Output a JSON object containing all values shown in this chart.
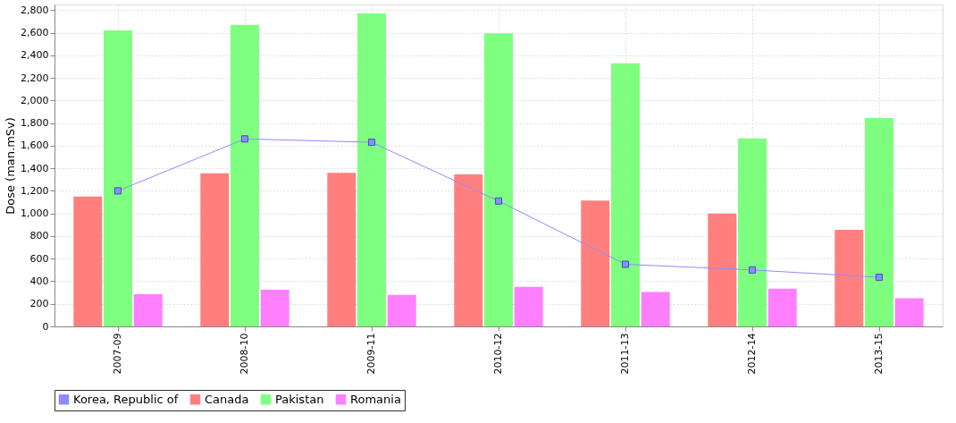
{
  "chart_data": {
    "type": "bar",
    "ylabel": "Dose (man.mSv)",
    "categories": [
      "2007-09",
      "2008-10",
      "2009-11",
      "2010-12",
      "2011-13",
      "2012-14",
      "2013-15"
    ],
    "series": [
      {
        "name": "Korea, Republic of",
        "type": "line",
        "color": "#8c8cff",
        "marker": "square",
        "values": [
          1200,
          1660,
          1630,
          1110,
          550,
          500,
          435
        ]
      },
      {
        "name": "Canada",
        "color": "#ff7f7f",
        "values": [
          1150,
          1355,
          1360,
          1345,
          1115,
          1000,
          855
        ]
      },
      {
        "name": "Pakistan",
        "color": "#7fff7f",
        "values": [
          2620,
          2670,
          2770,
          2595,
          2330,
          1665,
          1845
        ]
      },
      {
        "name": "Romania",
        "color": "#ff7fff",
        "values": [
          285,
          325,
          280,
          350,
          305,
          335,
          250
        ]
      }
    ],
    "ylim": [
      0,
      2850
    ],
    "yticks": [
      {
        "value": 0,
        "label": "0"
      },
      {
        "value": 200,
        "label": "200"
      },
      {
        "value": 400,
        "label": "400"
      },
      {
        "value": 600,
        "label": "600"
      },
      {
        "value": 800,
        "label": "800"
      },
      {
        "value": 1000,
        "label": "1,000"
      },
      {
        "value": 1200,
        "label": "1,200"
      },
      {
        "value": 1400,
        "label": "1,400"
      },
      {
        "value": 1600,
        "label": "1,600"
      },
      {
        "value": 1800,
        "label": "1,800"
      },
      {
        "value": 2000,
        "label": "2,000"
      },
      {
        "value": 2200,
        "label": "2,200"
      },
      {
        "value": 2400,
        "label": "2,400"
      },
      {
        "value": 2600,
        "label": "2,600"
      },
      {
        "value": 2800,
        "label": "2,800"
      }
    ],
    "grid": true,
    "legend": "bottom"
  }
}
